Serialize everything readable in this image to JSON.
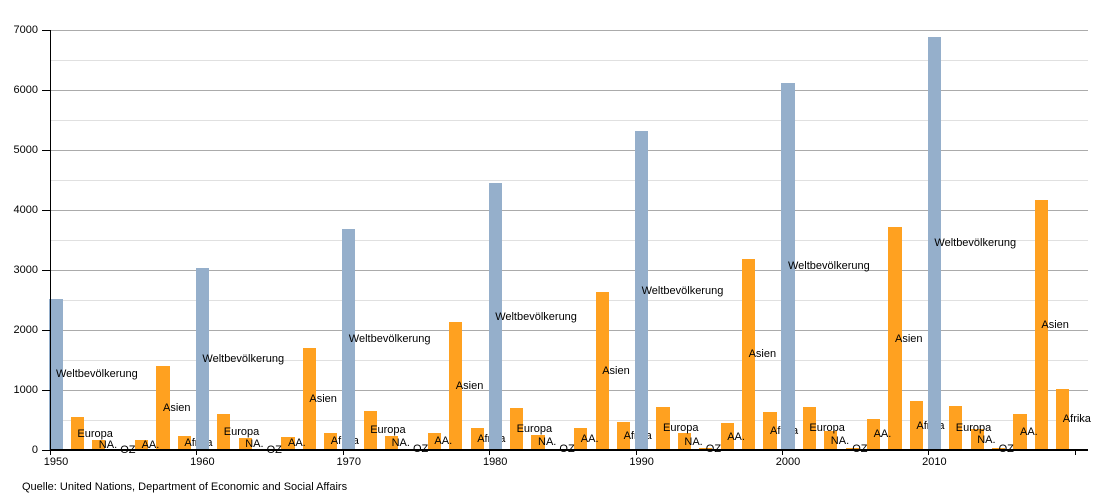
{
  "source_note": "Quelle: United Nations, Department of Economic and Social Affairs",
  "colors": {
    "world_bar": "#95afcb",
    "continent_bar": "#ffa120",
    "major_grid": "#ababab",
    "minor_grid": "#e0e0e0",
    "axis": "#000000",
    "text": "#000000",
    "background": "#ffffff"
  },
  "chart_data": {
    "type": "bar",
    "title": "",
    "xlabel": "",
    "ylabel": "",
    "units": "millions (Millionen)",
    "categories": [
      "1950",
      "1960",
      "1970",
      "1980",
      "1990",
      "2000",
      "2010"
    ],
    "series": [
      {
        "name": "Weltbevölkerung",
        "key": "weltbevoelkerung",
        "role": "world",
        "values": [
          2525,
          3030,
          3690,
          4450,
          5310,
          6120,
          6890
        ]
      },
      {
        "name": "Europa",
        "key": "europa",
        "role": "continent",
        "values": [
          550,
          605,
          655,
          695,
          720,
          725,
          740
        ]
      },
      {
        "name": "NA.",
        "key": "na",
        "role": "continent",
        "values": [
          170,
          205,
          230,
          255,
          280,
          315,
          345
        ]
      },
      {
        "name": "OZ",
        "key": "oz",
        "role": "continent",
        "values": [
          13,
          16,
          20,
          23,
          27,
          31,
          37
        ]
      },
      {
        "name": "AA.",
        "key": "aa",
        "role": "continent",
        "values": [
          170,
          220,
          290,
          365,
          445,
          525,
          600
        ]
      },
      {
        "name": "Asien",
        "key": "asien",
        "role": "continent",
        "values": [
          1395,
          1700,
          2135,
          2630,
          3190,
          3715,
          4160
        ]
      },
      {
        "name": "Afrika",
        "key": "afrika",
        "role": "continent",
        "values": [
          230,
          285,
          365,
          475,
          630,
          810,
          1020
        ]
      }
    ],
    "ylim": [
      0,
      7000
    ],
    "y_major_ticks": [
      "0",
      "1000",
      "2000",
      "3000",
      "4000",
      "5000",
      "6000",
      "7000"
    ],
    "y_minor_step": 500,
    "grid": "major and minor horizontal gridlines",
    "legend": "none — each bar labelled inline at mid-height with its series name"
  }
}
